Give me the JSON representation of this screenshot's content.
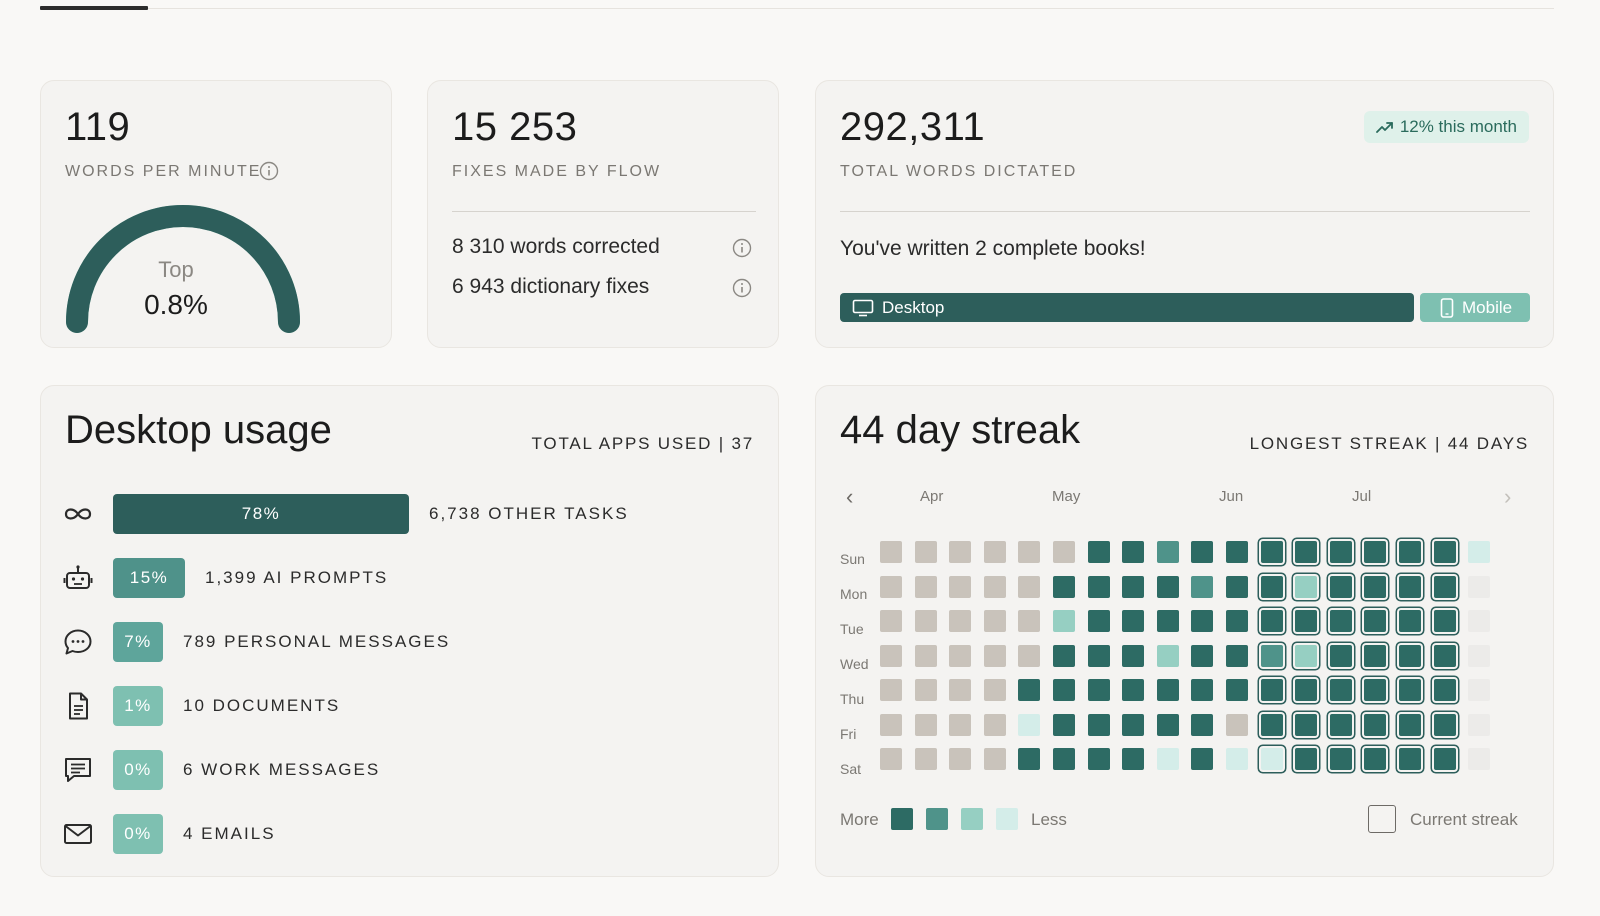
{
  "wpm": {
    "value": "119",
    "label": "WORDS PER MINUTE",
    "gauge_top": "Top",
    "gauge_value": "0.8%",
    "gauge_fill_fraction": 1.0
  },
  "fixes": {
    "value": "15 253",
    "label": "FIXES MADE BY FLOW",
    "rows": [
      {
        "num": "8 310",
        "text": "words corrected"
      },
      {
        "num": "6 943",
        "text": "dictionary fixes"
      }
    ]
  },
  "total": {
    "value": "292,311",
    "label": "TOTAL WORDS DICTATED",
    "trend": "12% this month",
    "books_text": "You've written 2 complete books!",
    "desktop_label": "Desktop",
    "mobile_label": "Mobile"
  },
  "usage": {
    "title": "Desktop usage",
    "meta": "TOTAL APPS USED | 37",
    "rows": [
      {
        "icon": "infinity-icon",
        "pct": "78%",
        "fraction": 0.78,
        "label": "6,738 OTHER TASKS",
        "color": "#2d5e5b"
      },
      {
        "icon": "robot-icon",
        "pct": "15%",
        "fraction": 0.15,
        "label": "1,399 AI PROMPTS",
        "color": "#4f928a"
      },
      {
        "icon": "chat-bubble-icon",
        "pct": "7%",
        "fraction": 0.07,
        "label": "789 PERSONAL MESSAGES",
        "color": "#5ea59b"
      },
      {
        "icon": "document-icon",
        "pct": "1%",
        "fraction": 0.01,
        "label": "10 DOCUMENTS",
        "color": "#7ec0b1"
      },
      {
        "icon": "message-lines-icon",
        "pct": "0%",
        "fraction": 0.0,
        "label": "6 WORK MESSAGES",
        "color": "#7ec0b1"
      },
      {
        "icon": "mail-icon",
        "pct": "0%",
        "fraction": 0.0,
        "label": "4 EMAILS",
        "color": "#7ec0b1"
      }
    ]
  },
  "streak": {
    "title": "44 day streak",
    "meta": "LONGEST STREAK | 44 DAYS",
    "months": [
      "Apr",
      "May",
      "Jun",
      "Jul"
    ],
    "days": [
      "Sun",
      "Mon",
      "Tue",
      "Wed",
      "Thu",
      "Fri",
      "Sat"
    ],
    "legend_more": "More",
    "legend_less": "Less",
    "current_label": "Current streak",
    "level_colors": {
      "0": "#c9c3bb",
      "1": "#2d6b64",
      "2": "#4f938a",
      "3": "#96cfc2",
      "4": "#d4ede9",
      "5": "#ecebe9"
    },
    "legend_levels": [
      1,
      2,
      3,
      4
    ],
    "grid": [
      [
        0,
        0,
        0,
        0,
        0,
        0,
        1,
        1,
        2,
        1,
        1,
        1,
        1,
        1,
        1,
        1,
        1,
        4
      ],
      [
        0,
        0,
        0,
        0,
        0,
        1,
        1,
        1,
        1,
        2,
        1,
        1,
        3,
        1,
        1,
        1,
        1,
        5
      ],
      [
        0,
        0,
        0,
        0,
        0,
        3,
        1,
        1,
        1,
        1,
        1,
        1,
        1,
        1,
        1,
        1,
        1,
        5
      ],
      [
        0,
        0,
        0,
        0,
        0,
        1,
        1,
        1,
        3,
        1,
        1,
        2,
        3,
        1,
        1,
        1,
        1,
        5
      ],
      [
        0,
        0,
        0,
        0,
        1,
        1,
        1,
        1,
        1,
        1,
        1,
        1,
        1,
        1,
        1,
        1,
        1,
        5
      ],
      [
        0,
        0,
        0,
        0,
        4,
        1,
        1,
        1,
        1,
        1,
        0,
        1,
        1,
        1,
        1,
        1,
        1,
        5
      ],
      [
        0,
        0,
        0,
        0,
        1,
        1,
        1,
        1,
        4,
        1,
        4,
        4,
        1,
        1,
        1,
        1,
        1,
        5
      ]
    ],
    "current_streak_start_col": 11,
    "current_streak_end_col": 16
  }
}
